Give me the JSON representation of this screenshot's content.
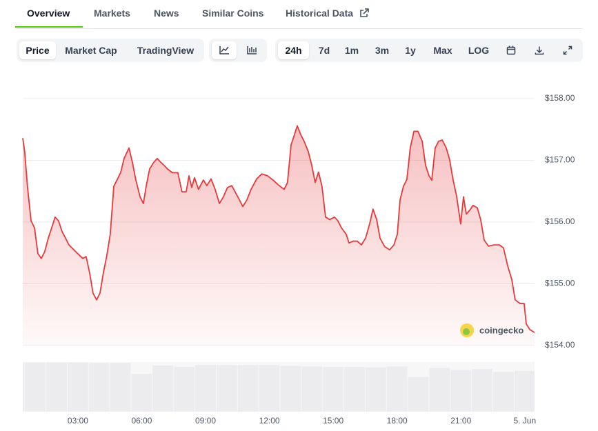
{
  "tabs": [
    "Overview",
    "Markets",
    "News",
    "Similar Coins",
    "Historical Data"
  ],
  "toolbar": {
    "views": [
      "Price",
      "Market Cap",
      "TradingView"
    ],
    "ranges": [
      "24h",
      "7d",
      "1m",
      "3m",
      "1y",
      "Max",
      "LOG"
    ]
  },
  "watermark": "coingecko",
  "chart_data": {
    "type": "area",
    "color": "#e5393b",
    "x": [
      0.41,
      0.5,
      0.63,
      0.8,
      0.96,
      1.12,
      1.28,
      1.44,
      1.61,
      1.77,
      1.93,
      2.09,
      2.25,
      2.42,
      2.58,
      2.9,
      3.23,
      3.39,
      3.55,
      3.71,
      3.88,
      4.04,
      4.2,
      4.36,
      4.52,
      4.69,
      4.85,
      5.01,
      5.17,
      5.4,
      5.56,
      5.72,
      5.92,
      6.08,
      6.21,
      6.37,
      6.57,
      6.73,
      6.89,
      7.05,
      7.21,
      7.44,
      7.7,
      7.89,
      8.09,
      8.22,
      8.35,
      8.48,
      8.67,
      8.9,
      9.06,
      9.26,
      9.45,
      9.65,
      9.84,
      10.03,
      10.23,
      10.42,
      10.62,
      10.75,
      10.94,
      11.14,
      11.4,
      11.65,
      11.91,
      12.17,
      12.43,
      12.69,
      12.85,
      13.02,
      13.18,
      13.31,
      13.47,
      13.63,
      13.83,
      13.99,
      14.15,
      14.31,
      14.47,
      14.64,
      14.83,
      15.06,
      15.22,
      15.38,
      15.61,
      15.74,
      15.93,
      16.13,
      16.32,
      16.52,
      16.71,
      16.87,
      17.04,
      17.2,
      17.42,
      17.65,
      17.85,
      18.01,
      18.14,
      18.3,
      18.46,
      18.62,
      18.79,
      18.98,
      19.18,
      19.34,
      19.5,
      19.63,
      19.79,
      19.95,
      20.12,
      20.31,
      20.47,
      20.63,
      20.8,
      20.99,
      21.12,
      21.25,
      21.41,
      21.57,
      21.77,
      21.93,
      22.09,
      22.29,
      22.55,
      22.81,
      23.0,
      23.19,
      23.39,
      23.55,
      23.78,
      23.97,
      24.07,
      24.23,
      24.46
    ],
    "values": [
      157.36,
      157.14,
      156.58,
      156.02,
      155.91,
      155.49,
      155.41,
      155.52,
      155.74,
      155.91,
      156.08,
      156.02,
      155.85,
      155.74,
      155.63,
      155.52,
      155.41,
      155.44,
      155.18,
      154.85,
      154.74,
      154.85,
      155.18,
      155.46,
      155.8,
      156.58,
      156.69,
      156.8,
      157.03,
      157.2,
      156.97,
      156.69,
      156.41,
      156.3,
      156.58,
      156.86,
      156.97,
      157.03,
      156.97,
      156.92,
      156.86,
      156.8,
      156.8,
      156.49,
      156.49,
      156.75,
      156.56,
      156.72,
      156.53,
      156.68,
      156.59,
      156.7,
      156.53,
      156.3,
      156.41,
      156.56,
      156.59,
      156.47,
      156.34,
      156.25,
      156.36,
      156.53,
      156.7,
      156.78,
      156.75,
      156.68,
      156.6,
      156.53,
      156.64,
      157.25,
      157.42,
      157.56,
      157.42,
      157.31,
      157.14,
      156.92,
      156.64,
      156.81,
      156.58,
      156.08,
      156.04,
      156.08,
      156.02,
      155.91,
      155.8,
      155.66,
      155.69,
      155.69,
      155.63,
      155.74,
      155.97,
      156.21,
      156.04,
      155.74,
      155.6,
      155.55,
      155.63,
      155.8,
      156.36,
      156.58,
      156.69,
      157.2,
      157.47,
      157.47,
      157.31,
      156.92,
      156.75,
      156.68,
      157.2,
      157.31,
      157.33,
      157.2,
      157.01,
      156.69,
      156.41,
      155.97,
      156.41,
      156.13,
      156.19,
      156.27,
      156.23,
      156.04,
      155.71,
      155.61,
      155.63,
      155.63,
      155.58,
      155.3,
      155.07,
      154.74,
      154.68,
      154.68,
      154.35,
      154.26,
      154.21
    ],
    "xlim": [
      0.41,
      24.46
    ],
    "xticks": [
      {
        "value": 3,
        "label": "03:00"
      },
      {
        "value": 6,
        "label": "06:00"
      },
      {
        "value": 9,
        "label": "09:00"
      },
      {
        "value": 12,
        "label": "12:00"
      },
      {
        "value": 15,
        "label": "15:00"
      },
      {
        "value": 18,
        "label": "18:00"
      },
      {
        "value": 21,
        "label": "21:00"
      },
      {
        "value": 24,
        "label": "5. Jun"
      }
    ],
    "ylim": [
      154,
      158
    ],
    "yticks": [
      {
        "value": 154,
        "label": "$154.00"
      },
      {
        "value": 155,
        "label": "$155.00"
      },
      {
        "value": 156,
        "label": "$156.00"
      },
      {
        "value": 157,
        "label": "$157.00"
      },
      {
        "value": 158,
        "label": "$158.00"
      }
    ],
    "grid": true,
    "volume": {
      "color": "#ececef",
      "ylim": [
        0,
        100
      ],
      "x": [
        0,
        1,
        2,
        3,
        4,
        5,
        6,
        7,
        8,
        9,
        10,
        11,
        12,
        13,
        14,
        15,
        16,
        17,
        18,
        19,
        20,
        21,
        22,
        23,
        24
      ],
      "values": [
        98,
        99,
        99,
        99,
        98,
        98,
        76,
        93,
        90,
        94,
        94,
        94,
        94,
        92,
        91,
        90,
        90,
        89,
        91,
        70,
        88,
        84,
        86,
        80,
        82
      ]
    }
  }
}
